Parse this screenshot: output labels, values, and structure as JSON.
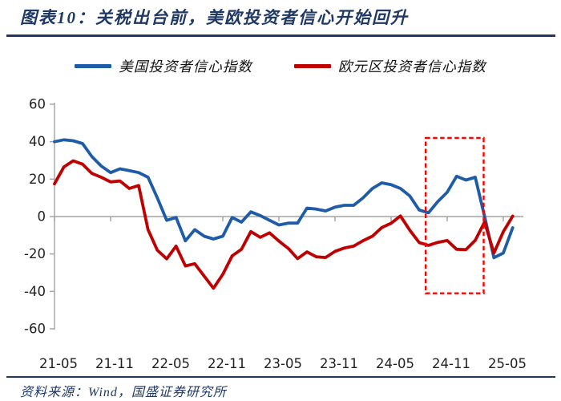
{
  "page": {
    "title": "图表10：关税出台前，美欧投资者信心开始回升",
    "source_label": "资料来源：Wind，国盛证券研究所"
  },
  "colors": {
    "title_navy": "#1F3864",
    "us_blue": "#1E5BA8",
    "eu_red": "#C00000",
    "highlight_red": "#FE0000",
    "axis_gray": "#A3A3A3",
    "label_dark": "#1F1F1F"
  },
  "chart_data": {
    "type": "line",
    "title": "图表10：关税出台前，美欧投资者信心开始回升",
    "x": [
      "21-05",
      "21-06",
      "21-07",
      "21-08",
      "21-09",
      "21-10",
      "21-11",
      "21-12",
      "22-01",
      "22-02",
      "22-03",
      "22-04",
      "22-05",
      "22-06",
      "22-07",
      "22-08",
      "22-09",
      "22-10",
      "22-11",
      "22-12",
      "23-01",
      "23-02",
      "23-03",
      "23-04",
      "23-05",
      "23-06",
      "23-07",
      "23-08",
      "23-09",
      "23-10",
      "23-11",
      "23-12",
      "24-01",
      "24-02",
      "24-03",
      "24-04",
      "24-05",
      "24-06",
      "24-07",
      "24-08",
      "24-09",
      "24-10",
      "24-11",
      "24-12",
      "25-01",
      "25-02",
      "25-03",
      "25-04",
      "25-05",
      "25-06"
    ],
    "series": [
      {
        "id": "us",
        "name": "美国投资者信心指数",
        "color_key": "us_blue",
        "values": [
          40,
          41,
          40.5,
          39,
          32,
          27,
          23.5,
          25.5,
          24.5,
          23.5,
          21,
          10,
          -2,
          -0.5,
          -13,
          -7,
          -10.5,
          -12,
          -10.5,
          -0.5,
          -3,
          2.5,
          0.5,
          -2,
          -4.5,
          -3.5,
          -3.5,
          4.5,
          4,
          3,
          5,
          6,
          6,
          10,
          15,
          18,
          17,
          15,
          11,
          3.5,
          2,
          8,
          13,
          21.5,
          19.5,
          21,
          0,
          -22,
          -19.5,
          -6
        ]
      },
      {
        "id": "eu",
        "name": "欧元区投资者信心指数",
        "color_key": "eu_red",
        "values": [
          17.5,
          26.5,
          29.8,
          28,
          23,
          21,
          18.5,
          19,
          15,
          16.6,
          -7,
          -18,
          -22.6,
          -15.8,
          -26.4,
          -25.2,
          -31.8,
          -38.3,
          -30.9,
          -21,
          -17.5,
          -8,
          -11.1,
          -8.7,
          -13.1,
          -17,
          -22.5,
          -18.9,
          -21.5,
          -21.9,
          -18.6,
          -16.8,
          -15.8,
          -12.9,
          -10.5,
          -5.9,
          -3.6,
          0.3,
          -7.3,
          -13.9,
          -15.4,
          -13.8,
          -12.8,
          -17.5,
          -17.7,
          -12.7,
          -2.9,
          -19.5,
          -8.1,
          0.2
        ]
      }
    ],
    "x_tick_labels": [
      "21-05",
      "21-11",
      "22-05",
      "22-11",
      "23-05",
      "23-11",
      "24-05",
      "24-11",
      "25-05"
    ],
    "y_ticks": [
      60,
      40,
      20,
      0,
      -20,
      -40,
      -60
    ],
    "ylim": [
      -60,
      60
    ],
    "grid": false,
    "legend_position": "top-center",
    "highlight_box": {
      "from_index": 39.7,
      "to_index": 45.9,
      "from_month": "24-09",
      "to_month": "25-03",
      "value_min": -41,
      "value_max": 42
    }
  }
}
